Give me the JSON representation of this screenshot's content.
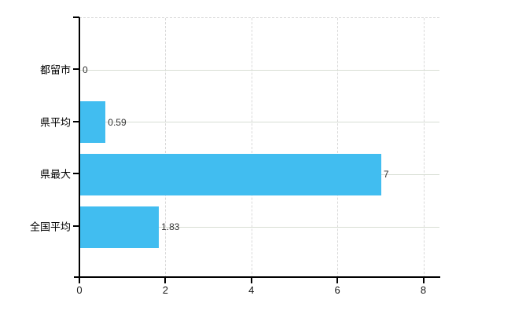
{
  "chart_data": {
    "type": "bar",
    "orientation": "horizontal",
    "title": "",
    "xlabel": "",
    "ylabel": "",
    "categories": [
      "都留市",
      "県平均",
      "県最大",
      "全国平均"
    ],
    "values": [
      0,
      0.59,
      7,
      1.83
    ],
    "value_labels": [
      "0",
      "0.59",
      "7",
      "1.83"
    ],
    "x_ticks": [
      "0",
      "2",
      "4",
      "6",
      "8"
    ],
    "x_tick_values": [
      0,
      2,
      4,
      6,
      8
    ],
    "xlim": [
      0,
      8.38
    ],
    "grid": true,
    "legend_position": "none",
    "bar_color": "#41bdf0",
    "axis_color": "#000000",
    "vgrid_color": "#d9d9d9",
    "row_line_color": "#d8ded4",
    "category_label_color": "#000000",
    "value_label_color": "#333333",
    "background_color": "#ffffff"
  }
}
